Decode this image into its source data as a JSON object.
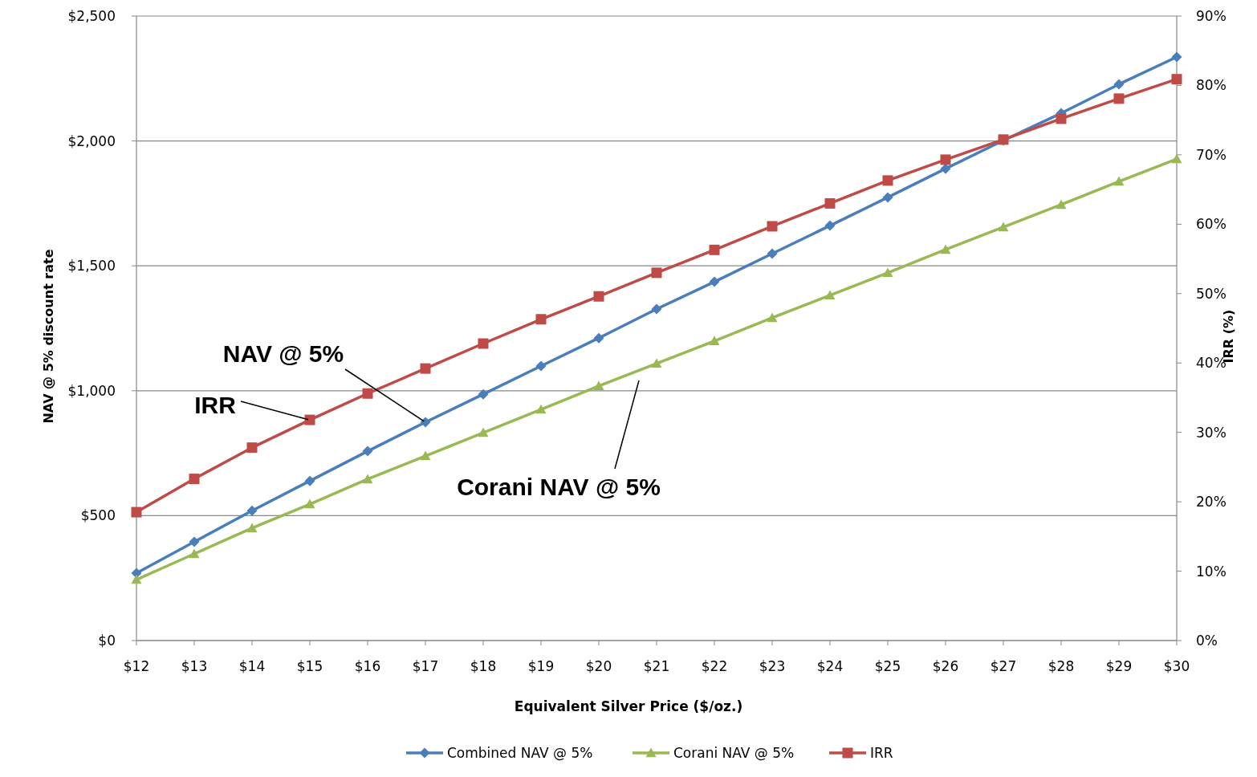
{
  "chart_data": {
    "type": "line",
    "xlabel": "Equivalent Silver Price ($/oz.)",
    "ylabel": "NAV @ 5% discount  rate",
    "y2label": "IRR (%)",
    "categories": [
      "$12",
      "$13",
      "$14",
      "$15",
      "$16",
      "$17",
      "$18",
      "$19",
      "$20",
      "$21",
      "$22",
      "$23",
      "$24",
      "$25",
      "$26",
      "$27",
      "$28",
      "$29",
      "$30"
    ],
    "series": [
      {
        "name": "Combined NAV @ 5%",
        "color": "#4a7ebb",
        "marker": "diamond",
        "values": [
          270,
          395,
          520,
          639,
          758,
          874,
          986,
          1099,
          1211,
          1327,
          1436,
          1549,
          1661,
          1774,
          1889,
          2002,
          2111,
          2227,
          2336
        ]
      },
      {
        "name": "Corani NAV @ 5%",
        "color": "#98b954",
        "marker": "triangle",
        "values": [
          244,
          347,
          450,
          546,
          646,
          739,
          832,
          925,
          1019,
          1109,
          1199,
          1292,
          1382,
          1472,
          1565,
          1655,
          1745,
          1838,
          1928
        ]
      },
      {
        "name": "IRR",
        "color": "#be4b48",
        "marker": "square",
        "axis": "y2",
        "values": [
          18.5,
          23.3,
          27.8,
          31.8,
          35.6,
          39.2,
          42.8,
          46.3,
          49.6,
          53.0,
          56.3,
          59.7,
          63.0,
          66.3,
          69.3,
          72.2,
          75.2,
          78.1,
          80.9
        ]
      }
    ],
    "ylim": [
      0,
      2500
    ],
    "yticks": [
      {
        "value": 0,
        "label": "$0"
      },
      {
        "value": 500,
        "label": "$500"
      },
      {
        "value": 1000,
        "label": "$1,000"
      },
      {
        "value": 1500,
        "label": "$1,500"
      },
      {
        "value": 2000,
        "label": "$2,000"
      },
      {
        "value": 2500,
        "label": "$2,500"
      }
    ],
    "y2lim": [
      0,
      90
    ],
    "y2ticks": [
      {
        "value": 0,
        "label": "0%"
      },
      {
        "value": 10,
        "label": "10%"
      },
      {
        "value": 20,
        "label": "20%"
      },
      {
        "value": 30,
        "label": "30%"
      },
      {
        "value": 40,
        "label": "40%"
      },
      {
        "value": 50,
        "label": "50%"
      },
      {
        "value": 60,
        "label": "60%"
      },
      {
        "value": 70,
        "label": "70%"
      },
      {
        "value": 80,
        "label": "80%"
      },
      {
        "value": 90,
        "label": "90%"
      }
    ],
    "grid": "y",
    "legend": "bottom",
    "line_style": "solid",
    "annotations": [
      {
        "text": "NAV @ 5%",
        "x": "$17",
        "y": 874
      },
      {
        "text": "IRR",
        "x": "$15",
        "y": 883
      },
      "Corani NAV @ 5%"
    ]
  }
}
